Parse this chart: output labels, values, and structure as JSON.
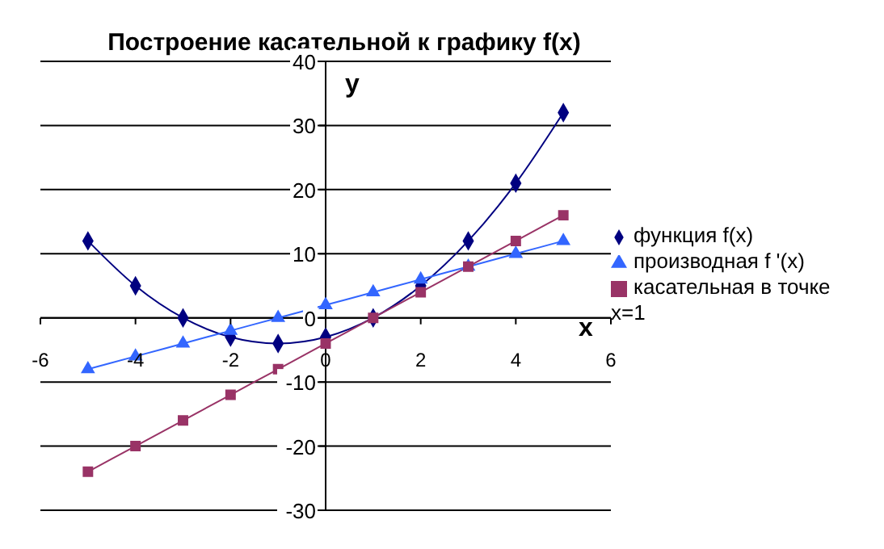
{
  "chart_data": {
    "type": "line",
    "title": "Построение касательной к графику f(x)",
    "xlabel": "x",
    "ylabel": "y",
    "x": [
      -5,
      -4,
      -3,
      -2,
      -1,
      0,
      1,
      2,
      3,
      4,
      5
    ],
    "series": [
      {
        "name": "функция f(x)",
        "color": "#000080",
        "marker": "diamond",
        "values": [
          12,
          5,
          0,
          -3,
          -4,
          -3,
          0,
          5,
          12,
          21,
          32
        ]
      },
      {
        "name": "производная f '(x)",
        "color": "#3366ff",
        "marker": "triangle",
        "values": [
          -8,
          -6,
          -4,
          -2,
          0,
          2,
          4,
          6,
          8,
          10,
          12
        ]
      },
      {
        "name": "касательная в точке x=1",
        "color": "#993366",
        "marker": "square",
        "values": [
          -24,
          -20,
          -16,
          -12,
          -8,
          -4,
          0,
          4,
          8,
          12,
          16
        ]
      }
    ],
    "xlim": [
      -6,
      6
    ],
    "xticks": [
      -6,
      -4,
      -2,
      0,
      2,
      4,
      6
    ],
    "ylim": [
      -30,
      40
    ],
    "yticks": [
      -30,
      -20,
      -10,
      0,
      10,
      20,
      30,
      40
    ],
    "grid": "y",
    "legend": "right",
    "line_style": "solid"
  }
}
